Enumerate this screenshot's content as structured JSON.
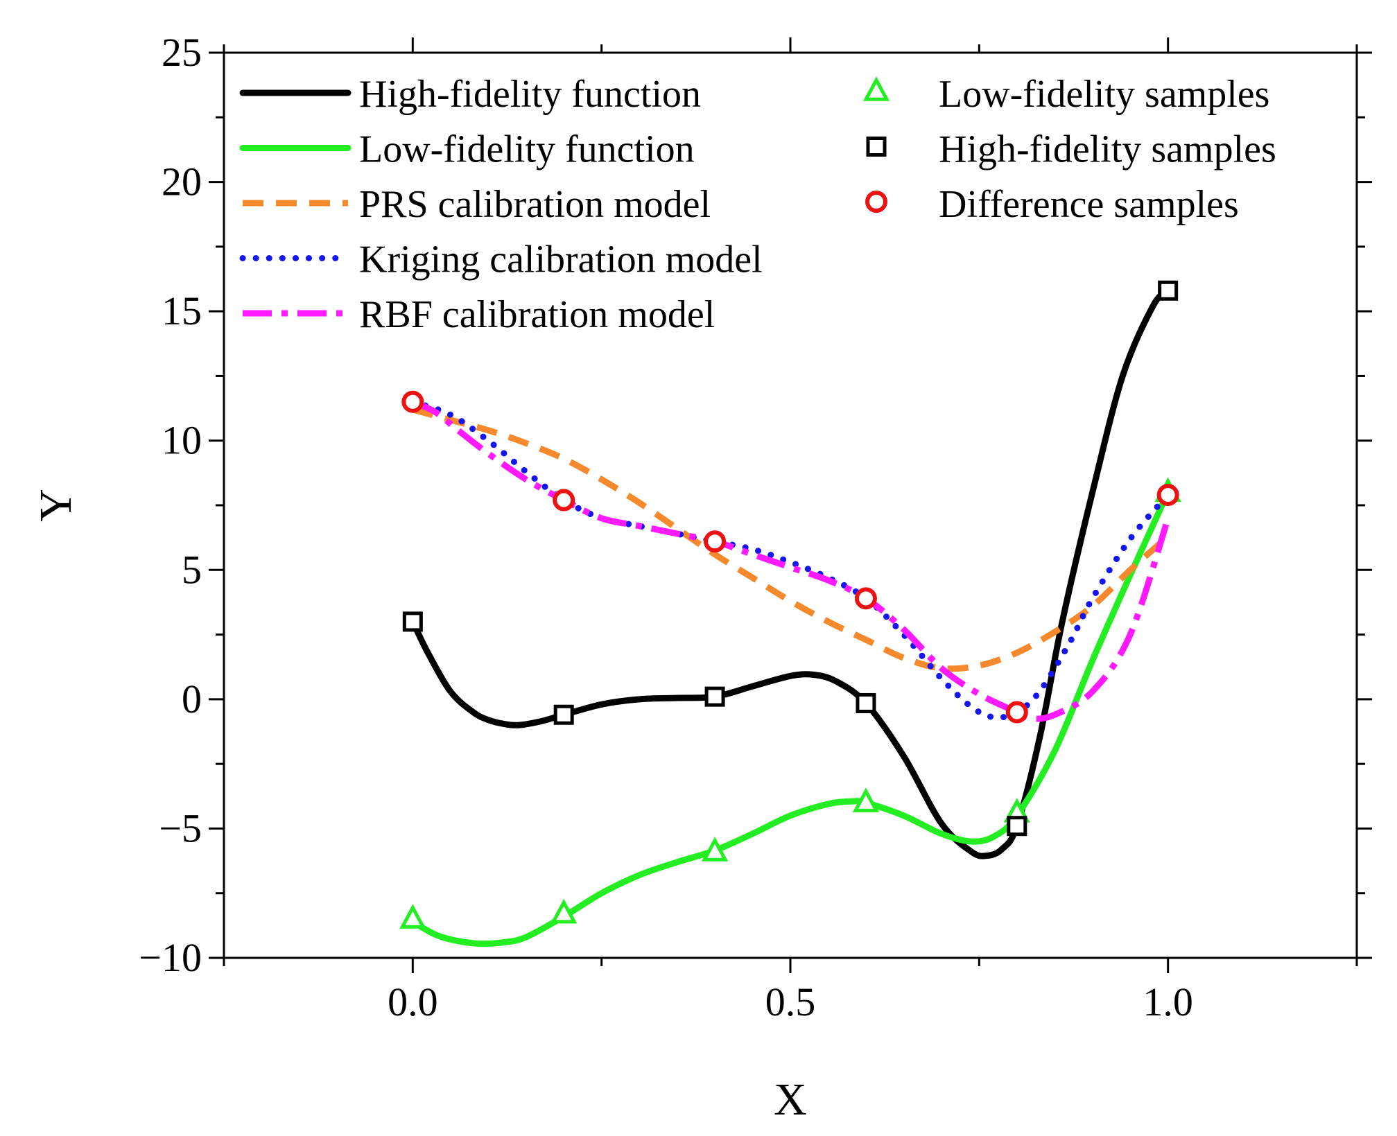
{
  "chart_data": {
    "type": "line",
    "xlabel": "X",
    "ylabel": "Y",
    "xlim": [
      -0.25,
      1.25
    ],
    "ylim": [
      -10,
      25
    ],
    "xticks": [
      0.0,
      0.5,
      1.0
    ],
    "xtick_labels": [
      "0.0",
      "0.5",
      "1.0"
    ],
    "yticks": [
      -10,
      -5,
      0,
      5,
      10,
      15,
      20,
      25
    ],
    "ytick_labels": [
      "−10",
      "−5",
      "0",
      "5",
      "10",
      "15",
      "20",
      "25"
    ],
    "grid": false,
    "legend_position": "top",
    "series": [
      {
        "name": "High-fidelity function",
        "kind": "line",
        "style": "solid",
        "color": "#000000",
        "x": [
          0.0,
          0.02,
          0.05,
          0.08,
          0.1,
          0.12,
          0.14,
          0.17,
          0.2,
          0.25,
          0.3,
          0.35,
          0.4,
          0.45,
          0.5,
          0.53,
          0.56,
          0.6,
          0.65,
          0.7,
          0.74,
          0.76,
          0.78,
          0.8,
          0.83,
          0.86,
          0.9,
          0.94,
          0.98,
          1.0
        ],
        "y": [
          3.0,
          1.8,
          0.3,
          -0.5,
          -0.8,
          -0.95,
          -1.0,
          -0.85,
          -0.6,
          -0.2,
          0.0,
          0.05,
          0.1,
          0.5,
          0.9,
          0.95,
          0.7,
          -0.15,
          -2.2,
          -4.8,
          -5.9,
          -6.05,
          -5.8,
          -4.9,
          -1.5,
          3.0,
          8.0,
          12.5,
          15.2,
          15.8
        ]
      },
      {
        "name": "Low-fidelity function",
        "kind": "line",
        "style": "solid",
        "color": "#22ee22",
        "x": [
          0.0,
          0.03,
          0.06,
          0.09,
          0.12,
          0.15,
          0.2,
          0.25,
          0.3,
          0.35,
          0.4,
          0.45,
          0.5,
          0.55,
          0.58,
          0.6,
          0.65,
          0.7,
          0.74,
          0.77,
          0.8,
          0.85,
          0.9,
          0.95,
          1.0
        ],
        "y": [
          -8.6,
          -9.1,
          -9.35,
          -9.45,
          -9.4,
          -9.2,
          -8.4,
          -7.5,
          -6.8,
          -6.3,
          -5.85,
          -5.2,
          -4.5,
          -4.05,
          -3.95,
          -4.0,
          -4.5,
          -5.2,
          -5.5,
          -5.3,
          -4.5,
          -2.0,
          1.5,
          4.8,
          8.0
        ]
      },
      {
        "name": "PRS calibration model",
        "kind": "line",
        "style": "dashed",
        "color": "#f5892b",
        "x": [
          0.0,
          0.05,
          0.1,
          0.15,
          0.2,
          0.25,
          0.3,
          0.35,
          0.4,
          0.45,
          0.5,
          0.55,
          0.6,
          0.65,
          0.7,
          0.75,
          0.8,
          0.85,
          0.9,
          0.95,
          1.0
        ],
        "y": [
          11.2,
          10.8,
          10.4,
          9.9,
          9.3,
          8.5,
          7.6,
          6.6,
          5.6,
          4.7,
          3.8,
          3.0,
          2.3,
          1.6,
          1.2,
          1.3,
          1.8,
          2.6,
          3.6,
          5.0,
          6.3
        ]
      },
      {
        "name": "Kriging calibration model",
        "kind": "line",
        "style": "dotted",
        "color": "#1515ee",
        "x": [
          0.0,
          0.05,
          0.1,
          0.15,
          0.2,
          0.25,
          0.3,
          0.35,
          0.4,
          0.45,
          0.5,
          0.55,
          0.6,
          0.65,
          0.7,
          0.74,
          0.77,
          0.8,
          0.83,
          0.87,
          0.9,
          0.95,
          1.0
        ],
        "y": [
          11.5,
          11.0,
          10.0,
          8.8,
          7.7,
          7.0,
          6.7,
          6.4,
          6.1,
          5.8,
          5.3,
          4.7,
          3.9,
          2.5,
          0.8,
          -0.3,
          -0.7,
          -0.5,
          0.3,
          2.2,
          3.9,
          6.2,
          7.9
        ]
      },
      {
        "name": "RBF calibration model",
        "kind": "line",
        "style": "dashdot",
        "color": "#ff19ff",
        "x": [
          0.0,
          0.03,
          0.06,
          0.1,
          0.15,
          0.2,
          0.25,
          0.3,
          0.35,
          0.4,
          0.45,
          0.5,
          0.55,
          0.6,
          0.65,
          0.7,
          0.75,
          0.8,
          0.82,
          0.85,
          0.9,
          0.95,
          1.0
        ],
        "y": [
          11.5,
          11.1,
          10.4,
          9.5,
          8.5,
          7.7,
          7.0,
          6.7,
          6.4,
          6.1,
          5.6,
          5.1,
          4.6,
          3.9,
          2.7,
          1.2,
          0.2,
          -0.5,
          -0.75,
          -0.6,
          0.3,
          2.5,
          7.0
        ]
      },
      {
        "name": "Low-fidelity samples",
        "kind": "scatter",
        "marker": "triangle",
        "color": "#22ee22",
        "x": [
          0.0,
          0.2,
          0.4,
          0.6,
          0.8,
          1.0
        ],
        "y": [
          -8.5,
          -8.3,
          -5.9,
          -4.0,
          -4.4,
          8.0
        ]
      },
      {
        "name": "High-fidelity samples",
        "kind": "scatter",
        "marker": "square",
        "color": "#000000",
        "x": [
          0.0,
          0.2,
          0.4,
          0.6,
          0.8,
          1.0
        ],
        "y": [
          3.0,
          -0.6,
          0.1,
          -0.15,
          -4.9,
          15.8
        ]
      },
      {
        "name": "Difference samples",
        "kind": "scatter",
        "marker": "circle",
        "color": "#ee1111",
        "x": [
          0.0,
          0.2,
          0.4,
          0.6,
          0.8,
          1.0
        ],
        "y": [
          11.5,
          7.7,
          6.1,
          3.9,
          -0.5,
          7.9
        ]
      }
    ]
  }
}
